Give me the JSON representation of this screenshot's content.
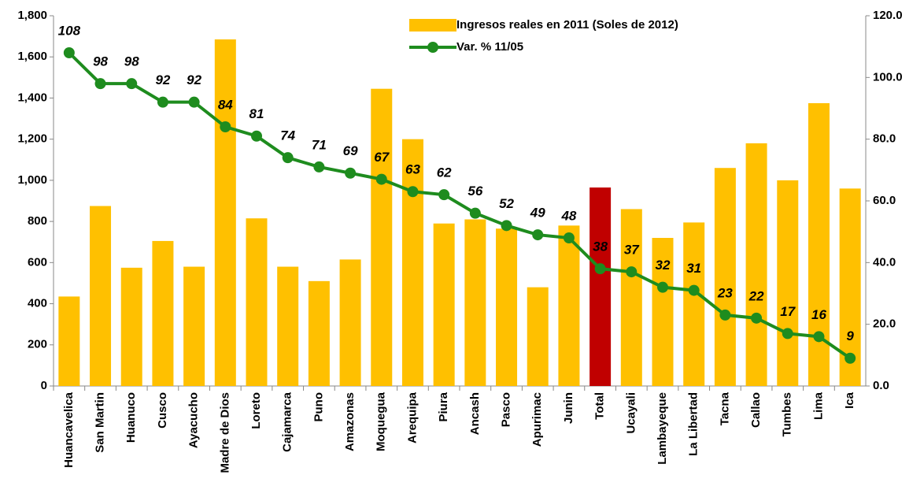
{
  "chart_data": {
    "type": "bar",
    "categories": [
      "Huancavelica",
      "San Martin",
      "Huanuco",
      "Cusco",
      "Ayacucho",
      "Madre de Dios",
      "Loreto",
      "Cajamarca",
      "Puno",
      "Amazonas",
      "Moquegua",
      "Arequipa",
      "Piura",
      "Ancash",
      "Pasco",
      "Apurimac",
      "Junin",
      "Total",
      "Ucayali",
      "Lambayeque",
      "La Libertad",
      "Tacna",
      "Callao",
      "Tumbes",
      "Lima",
      "Ica"
    ],
    "series": [
      {
        "name": "Ingresos reales en 2011  (Soles de 2012)",
        "type": "bar",
        "color": "#ffc000",
        "colors": [
          "#ffc000",
          "#ffc000",
          "#ffc000",
          "#ffc000",
          "#ffc000",
          "#ffc000",
          "#ffc000",
          "#ffc000",
          "#ffc000",
          "#ffc000",
          "#ffc000",
          "#ffc000",
          "#ffc000",
          "#ffc000",
          "#ffc000",
          "#ffc000",
          "#ffc000",
          "#c00000",
          "#ffc000",
          "#ffc000",
          "#ffc000",
          "#ffc000",
          "#ffc000",
          "#ffc000",
          "#ffc000",
          "#ffc000"
        ],
        "values": [
          435,
          875,
          575,
          705,
          580,
          1685,
          815,
          580,
          510,
          615,
          1445,
          1200,
          790,
          810,
          765,
          480,
          780,
          965,
          860,
          720,
          795,
          1060,
          1180,
          1000,
          1375,
          960
        ]
      },
      {
        "name": "Var. % 11/05",
        "type": "line",
        "axis": "y2",
        "color": "#1e8c1e",
        "values": [
          108,
          98,
          98,
          92,
          92,
          84,
          81,
          74,
          71,
          69,
          67,
          63,
          62,
          56,
          52,
          49,
          48,
          38,
          37,
          32,
          31,
          23,
          22,
          17,
          16,
          9
        ]
      }
    ],
    "ylim": [
      0,
      1800
    ],
    "yticks": [
      0,
      200,
      400,
      600,
      800,
      {
        "value": 1000,
        "label": "1,000"
      },
      {
        "value": 1200,
        "label": "1,200"
      },
      {
        "value": 1400,
        "label": "1,400"
      },
      {
        "value": 1600,
        "label": "1,600"
      },
      {
        "value": 1800,
        "label": "1,800"
      }
    ],
    "y2lim": [
      0,
      120
    ],
    "y2ticks": [
      {
        "value": 0,
        "label": "0.0"
      },
      {
        "value": 20,
        "label": "20.0"
      },
      {
        "value": 40,
        "label": "40.0"
      },
      {
        "value": 60,
        "label": "60.0"
      },
      {
        "value": 80,
        "label": "80.0"
      },
      {
        "value": 100,
        "label": "100.0"
      },
      {
        "value": 120,
        "label": "120.0"
      }
    ]
  }
}
